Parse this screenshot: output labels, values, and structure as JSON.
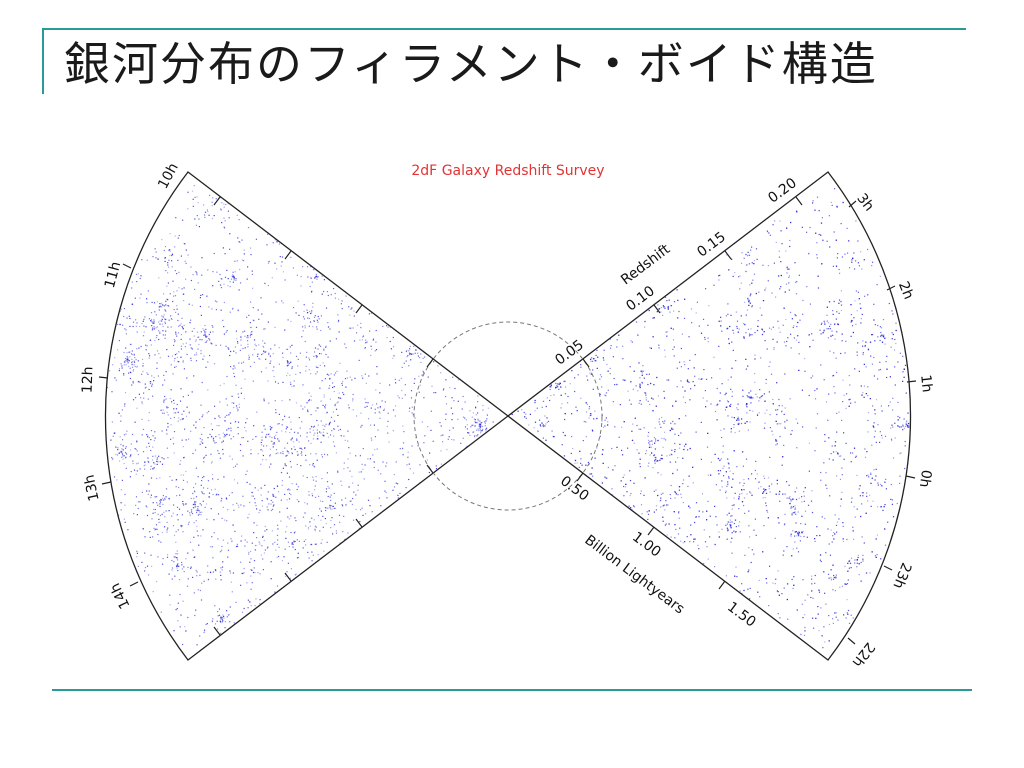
{
  "slide": {
    "title": "銀河分布のフィラメント・ボイド構造"
  },
  "figure": {
    "survey_title": "2dF Galaxy Redshift Survey",
    "point_color": "#2a2ad8",
    "left_wedge": {
      "ra_labels": [
        "10h",
        "11h",
        "12h",
        "13h",
        "14h"
      ]
    },
    "right_wedge": {
      "ra_labels": [
        "3h",
        "2h",
        "1h",
        "0h",
        "23h",
        "22h"
      ]
    },
    "redshift_axis": {
      "label": "Redshift",
      "ticks": [
        "0.05",
        "0.10",
        "0.15",
        "0.20"
      ]
    },
    "distance_axis": {
      "label": "Billion Lightyears",
      "ticks": [
        "0.50",
        "1.00",
        "1.50"
      ]
    }
  }
}
